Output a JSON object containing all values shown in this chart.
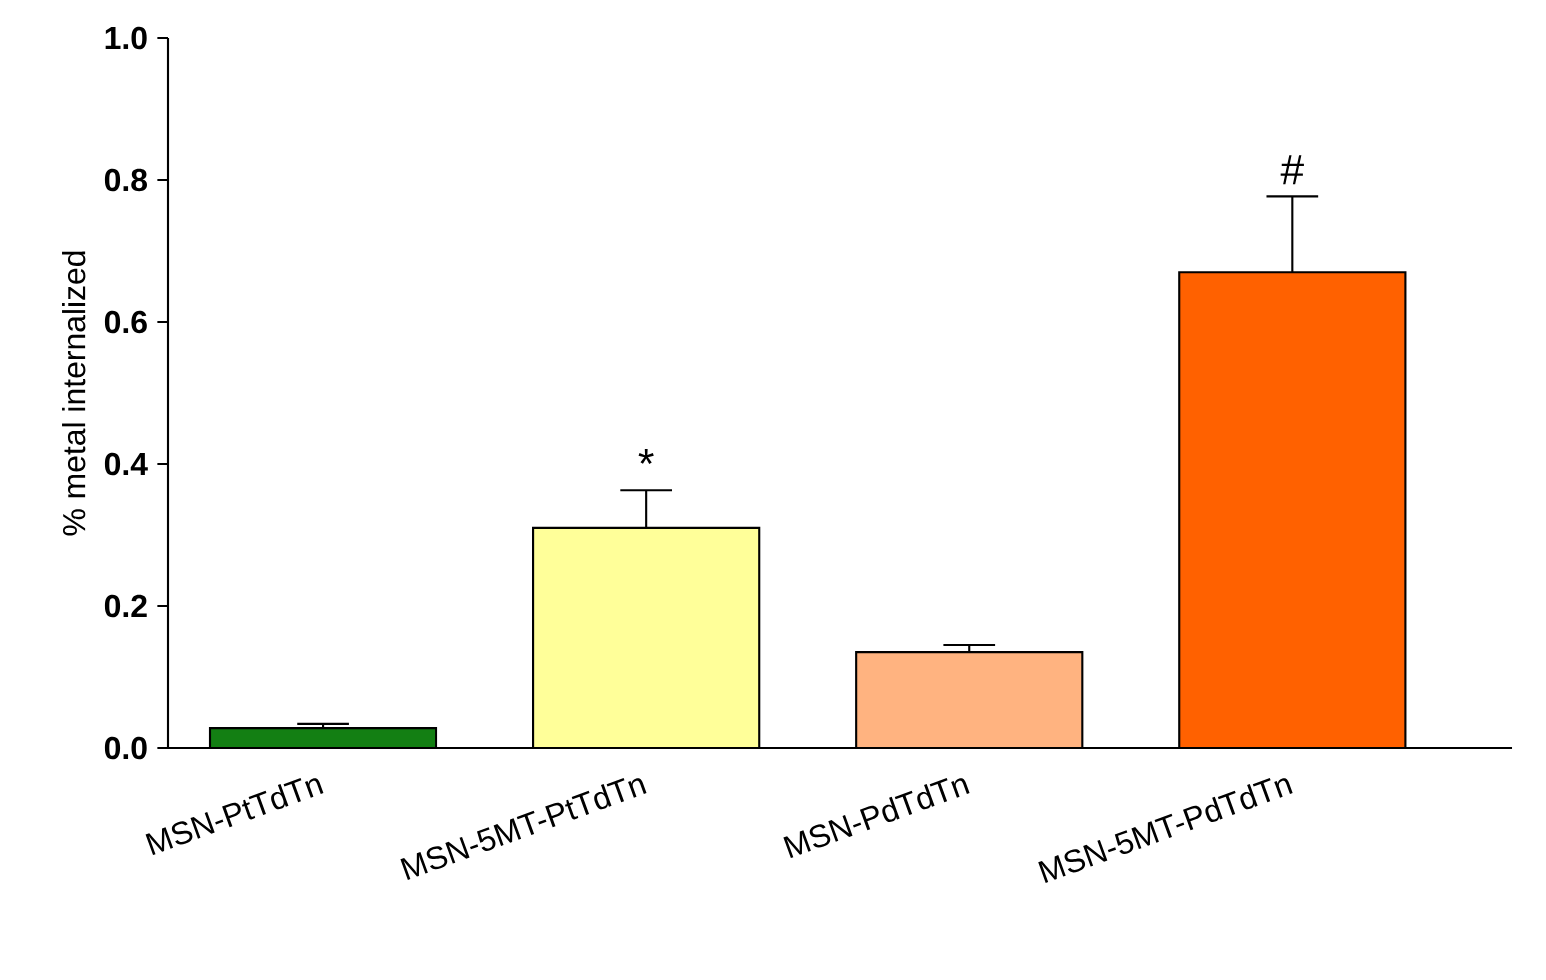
{
  "chart_data": {
    "type": "bar",
    "ylabel": "% metal internalized",
    "categories": [
      "MSN-PtTdTn",
      "MSN-5MT-PtTdTn",
      "MSN-PdTdTn",
      "MSN-5MT-PdTdTn"
    ],
    "values": [
      0.028,
      0.31,
      0.135,
      0.67
    ],
    "errors": [
      [
        0.028,
        0.034
      ],
      [
        0.31,
        0.363
      ],
      [
        0.135,
        0.145
      ],
      [
        0.67,
        0.777
      ]
    ],
    "colors": [
      "#137f13",
      "#ffff99",
      "#ffb380",
      "#ff6100"
    ],
    "ylim": [
      0,
      1.0
    ],
    "yticks": [
      {
        "value": 0,
        "label": "0.0"
      },
      {
        "value": 0.2,
        "label": "0.2"
      },
      {
        "value": 0.4,
        "label": "0.4"
      },
      {
        "value": 0.6,
        "label": "0.6"
      },
      {
        "value": 0.8,
        "label": "0.8"
      },
      {
        "value": 1.0,
        "label": "1.0"
      }
    ],
    "annotations": [
      {
        "text": "*",
        "x": "MSN-5MT-PtTdTn",
        "y": 0.363
      },
      {
        "text": "#",
        "x": "MSN-5MT-PdTdTn",
        "y": 0.777
      }
    ]
  }
}
